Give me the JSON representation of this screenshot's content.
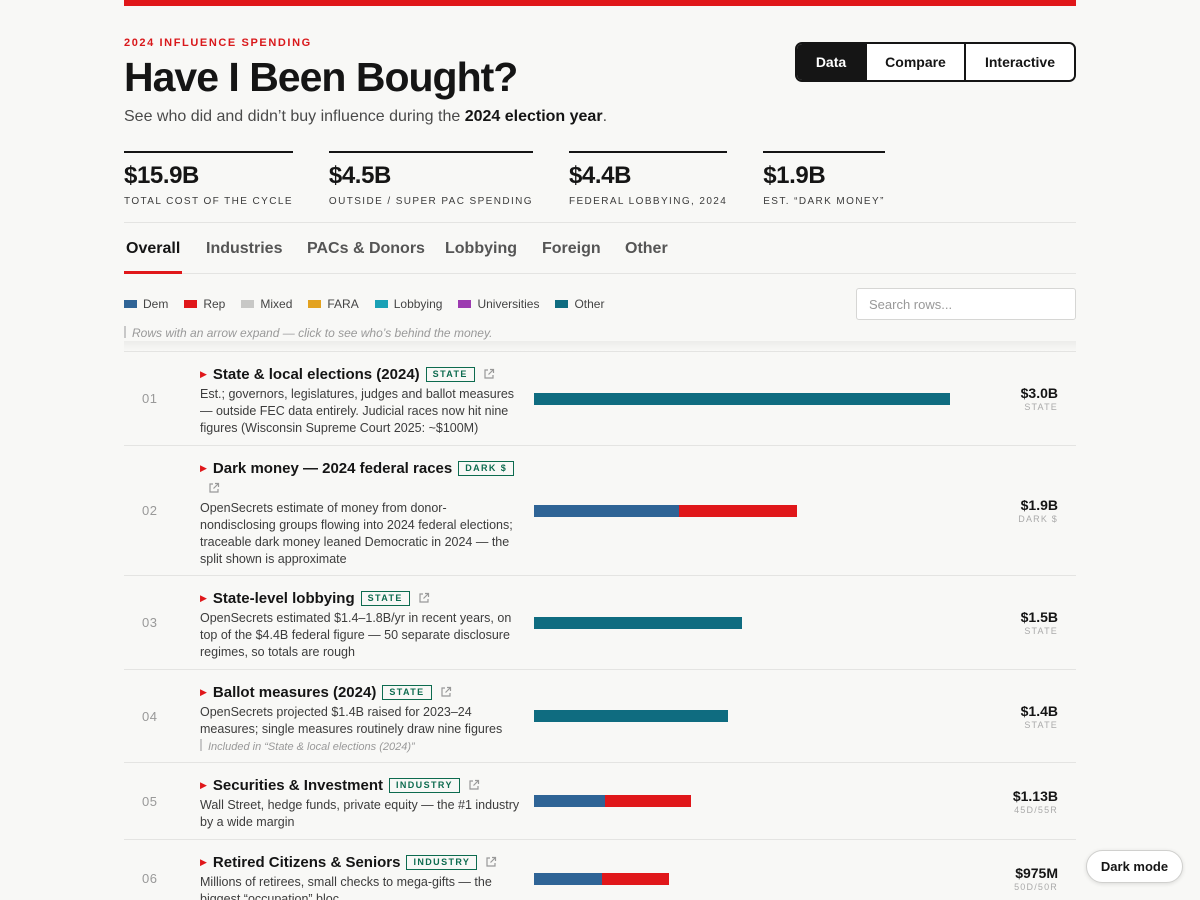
{
  "colors": {
    "accent": "#e0171a",
    "dem": "#2f6496",
    "rep": "#e0171a",
    "mixed": "#c8c8c6",
    "fara": "#e3a21f",
    "lobbying": "#1aa1b6",
    "universities": "#9c3bb0",
    "other": "#0f6c80",
    "tag": "#0d6b4f"
  },
  "header": {
    "kicker": "2024 INFLUENCE SPENDING",
    "title": "Have I Been Bought?",
    "subtitle_pre": "See who did and didn’t buy influence during the ",
    "subtitle_bold": "2024 election year",
    "subtitle_post": "."
  },
  "modes": [
    {
      "label": "Data",
      "active": true
    },
    {
      "label": "Compare",
      "active": false
    },
    {
      "label": "Interactive",
      "active": false
    }
  ],
  "stats": [
    {
      "value": "$15.9B",
      "label": "TOTAL COST OF THE CYCLE"
    },
    {
      "value": "$4.5B",
      "label": "OUTSIDE / SUPER PAC SPENDING"
    },
    {
      "value": "$4.4B",
      "label": "FEDERAL LOBBYING, 2024"
    },
    {
      "value": "$1.9B",
      "label": "EST. “DARK MONEY”"
    }
  ],
  "tabs": [
    {
      "label": "Overall",
      "active": true
    },
    {
      "label": "Industries",
      "active": false
    },
    {
      "label": "PACs & Donors",
      "active": false
    },
    {
      "label": "Lobbying",
      "active": false
    },
    {
      "label": "Foreign",
      "active": false
    },
    {
      "label": "Other",
      "active": false
    }
  ],
  "legend": [
    {
      "label": "Dem",
      "color": "#2f6496"
    },
    {
      "label": "Rep",
      "color": "#e0171a"
    },
    {
      "label": "Mixed",
      "color": "#c8c8c6"
    },
    {
      "label": "FARA",
      "color": "#e3a21f"
    },
    {
      "label": "Lobbying",
      "color": "#1aa1b6"
    },
    {
      "label": "Universities",
      "color": "#9c3bb0"
    },
    {
      "label": "Other",
      "color": "#0f6c80"
    }
  ],
  "search": {
    "placeholder": "Search rows..."
  },
  "hint": "Rows with an arrow expand — click to see who’s behind the money.",
  "max_value_billions": 3.0,
  "rows": [
    {
      "rank": "01",
      "title": "State & local elections (2024)",
      "tag": "STATE",
      "desc": "Est.; governors, legislatures, judges and ballot measures — outside FEC data entirely. Judicial races now hit nine figures (Wisconsin Supreme Court 2025: ~$100M)",
      "note": "",
      "amount": "$3.0B",
      "sub": "STATE",
      "value_billions": 3.0,
      "segments": [
        {
          "share": 1.0,
          "color": "#0f6c80"
        }
      ]
    },
    {
      "rank": "02",
      "title": "Dark money — 2024 federal races",
      "tag": "DARK $",
      "desc": "OpenSecrets estimate of money from donor-nondisclosing groups flowing into 2024 federal elections; traceable dark money leaned Democratic in 2024 — the split shown is approximate",
      "note": "",
      "amount": "$1.9B",
      "sub": "DARK $",
      "value_billions": 1.9,
      "segments": [
        {
          "share": 0.55,
          "color": "#2f6496"
        },
        {
          "share": 0.45,
          "color": "#e0171a"
        }
      ]
    },
    {
      "rank": "03",
      "title": "State-level lobbying",
      "tag": "STATE",
      "desc": "OpenSecrets estimated $1.4–1.8B/yr in recent years, on top of the $4.4B federal figure — 50 separate disclosure regimes, so totals are rough",
      "note": "",
      "amount": "$1.5B",
      "sub": "STATE",
      "value_billions": 1.5,
      "segments": [
        {
          "share": 1.0,
          "color": "#0f6c80"
        }
      ]
    },
    {
      "rank": "04",
      "title": "Ballot measures (2024)",
      "tag": "STATE",
      "desc": "OpenSecrets projected $1.4B raised for 2023–24 measures; single measures routinely draw nine figures",
      "note": "Included in “State & local elections (2024)”",
      "amount": "$1.4B",
      "sub": "STATE",
      "value_billions": 1.4,
      "segments": [
        {
          "share": 1.0,
          "color": "#0f6c80"
        }
      ]
    },
    {
      "rank": "05",
      "title": "Securities & Investment",
      "tag": "INDUSTRY",
      "desc": "Wall Street, hedge funds, private equity — the #1 industry by a wide margin",
      "note": "",
      "amount": "$1.13B",
      "sub": "45D/55R",
      "value_billions": 1.13,
      "segments": [
        {
          "share": 0.45,
          "color": "#2f6496"
        },
        {
          "share": 0.55,
          "color": "#e0171a"
        }
      ]
    },
    {
      "rank": "06",
      "title": "Retired Citizens & Seniors",
      "tag": "INDUSTRY",
      "desc": "Millions of retirees, small checks to mega-gifts — the biggest “occupation” bloc",
      "note": "",
      "amount": "$975M",
      "sub": "50D/50R",
      "value_billions": 0.975,
      "segments": [
        {
          "share": 0.5,
          "color": "#2f6496"
        },
        {
          "share": 0.5,
          "color": "#e0171a"
        }
      ]
    }
  ],
  "dark_mode_label": "Dark mode"
}
